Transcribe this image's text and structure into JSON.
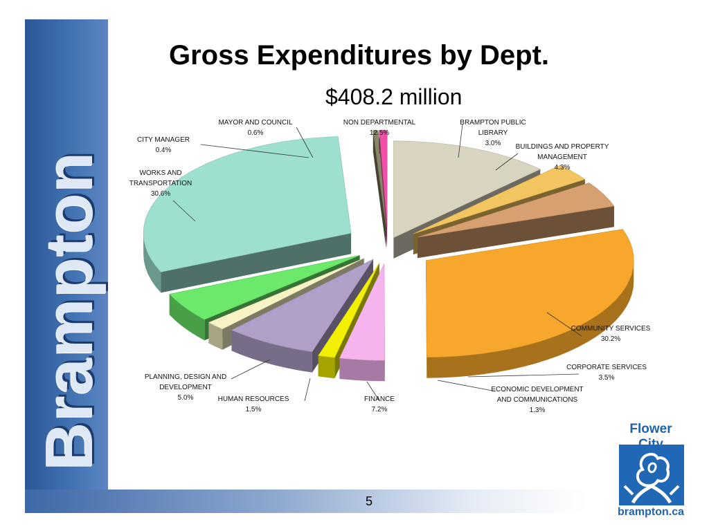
{
  "slide": {
    "title": "Gross Expenditures by Dept.",
    "subtitle": "$408.2 million",
    "page_number": "5",
    "sidebar_wordmark": "Brampton",
    "logo_top": "Flower City",
    "logo_bottom": "brampton.ca"
  },
  "colors": {
    "sidebar": "#2b5797",
    "logo_blue": "#2067b6"
  },
  "chart_data": {
    "type": "pie",
    "style": "3d-exploded",
    "title": "Gross Expenditures by Dept.",
    "subtitle": "$408.2 million",
    "legend": "none (callout labels)",
    "slices": [
      {
        "label": "NON DEPARTMENTAL",
        "value": 12.5,
        "display": "12.5%",
        "color": "#d8d4c0"
      },
      {
        "label": "BRAMPTON PUBLIC LIBRARY",
        "value": 3.0,
        "display": "3.0%",
        "color": "#f3c561"
      },
      {
        "label": "BUILDINGS AND PROPERTY MANAGEMENT",
        "value": 4.3,
        "display": "4.3%",
        "color": "#d7a070"
      },
      {
        "label": "COMMUNITY SERVICES",
        "value": 30.2,
        "display": "30.2%",
        "color": "#f7a72b"
      },
      {
        "label": "CORPORATE SERVICES",
        "value": 3.5,
        "display": "3.5%",
        "color": "#f6b4ef"
      },
      {
        "label": "ECONOMIC DEVELOPMENT AND COMMUNICATIONS",
        "value": 1.3,
        "display": "1.3%",
        "color": "#f2f000"
      },
      {
        "label": "FINANCE",
        "value": 7.2,
        "display": "7.2%",
        "color": "#b0a0c8"
      },
      {
        "label": "HUMAN RESOURCES",
        "value": 1.5,
        "display": "1.5%",
        "color": "#f7f3c4"
      },
      {
        "label": "PLANNING, DESIGN AND DEVELOPMENT",
        "value": 5.0,
        "display": "5.0%",
        "color": "#6ce86a"
      },
      {
        "label": "WORKS AND TRANSPORTATION",
        "value": 30.6,
        "display": "30.6%",
        "color": "#9ee0d0"
      },
      {
        "label": "CITY MANAGER",
        "value": 0.4,
        "display": "0.4%",
        "color": "#8a8468"
      },
      {
        "label": "MAYOR AND COUNCIL",
        "value": 0.6,
        "display": "0.6%",
        "color": "#f250a8"
      }
    ]
  }
}
